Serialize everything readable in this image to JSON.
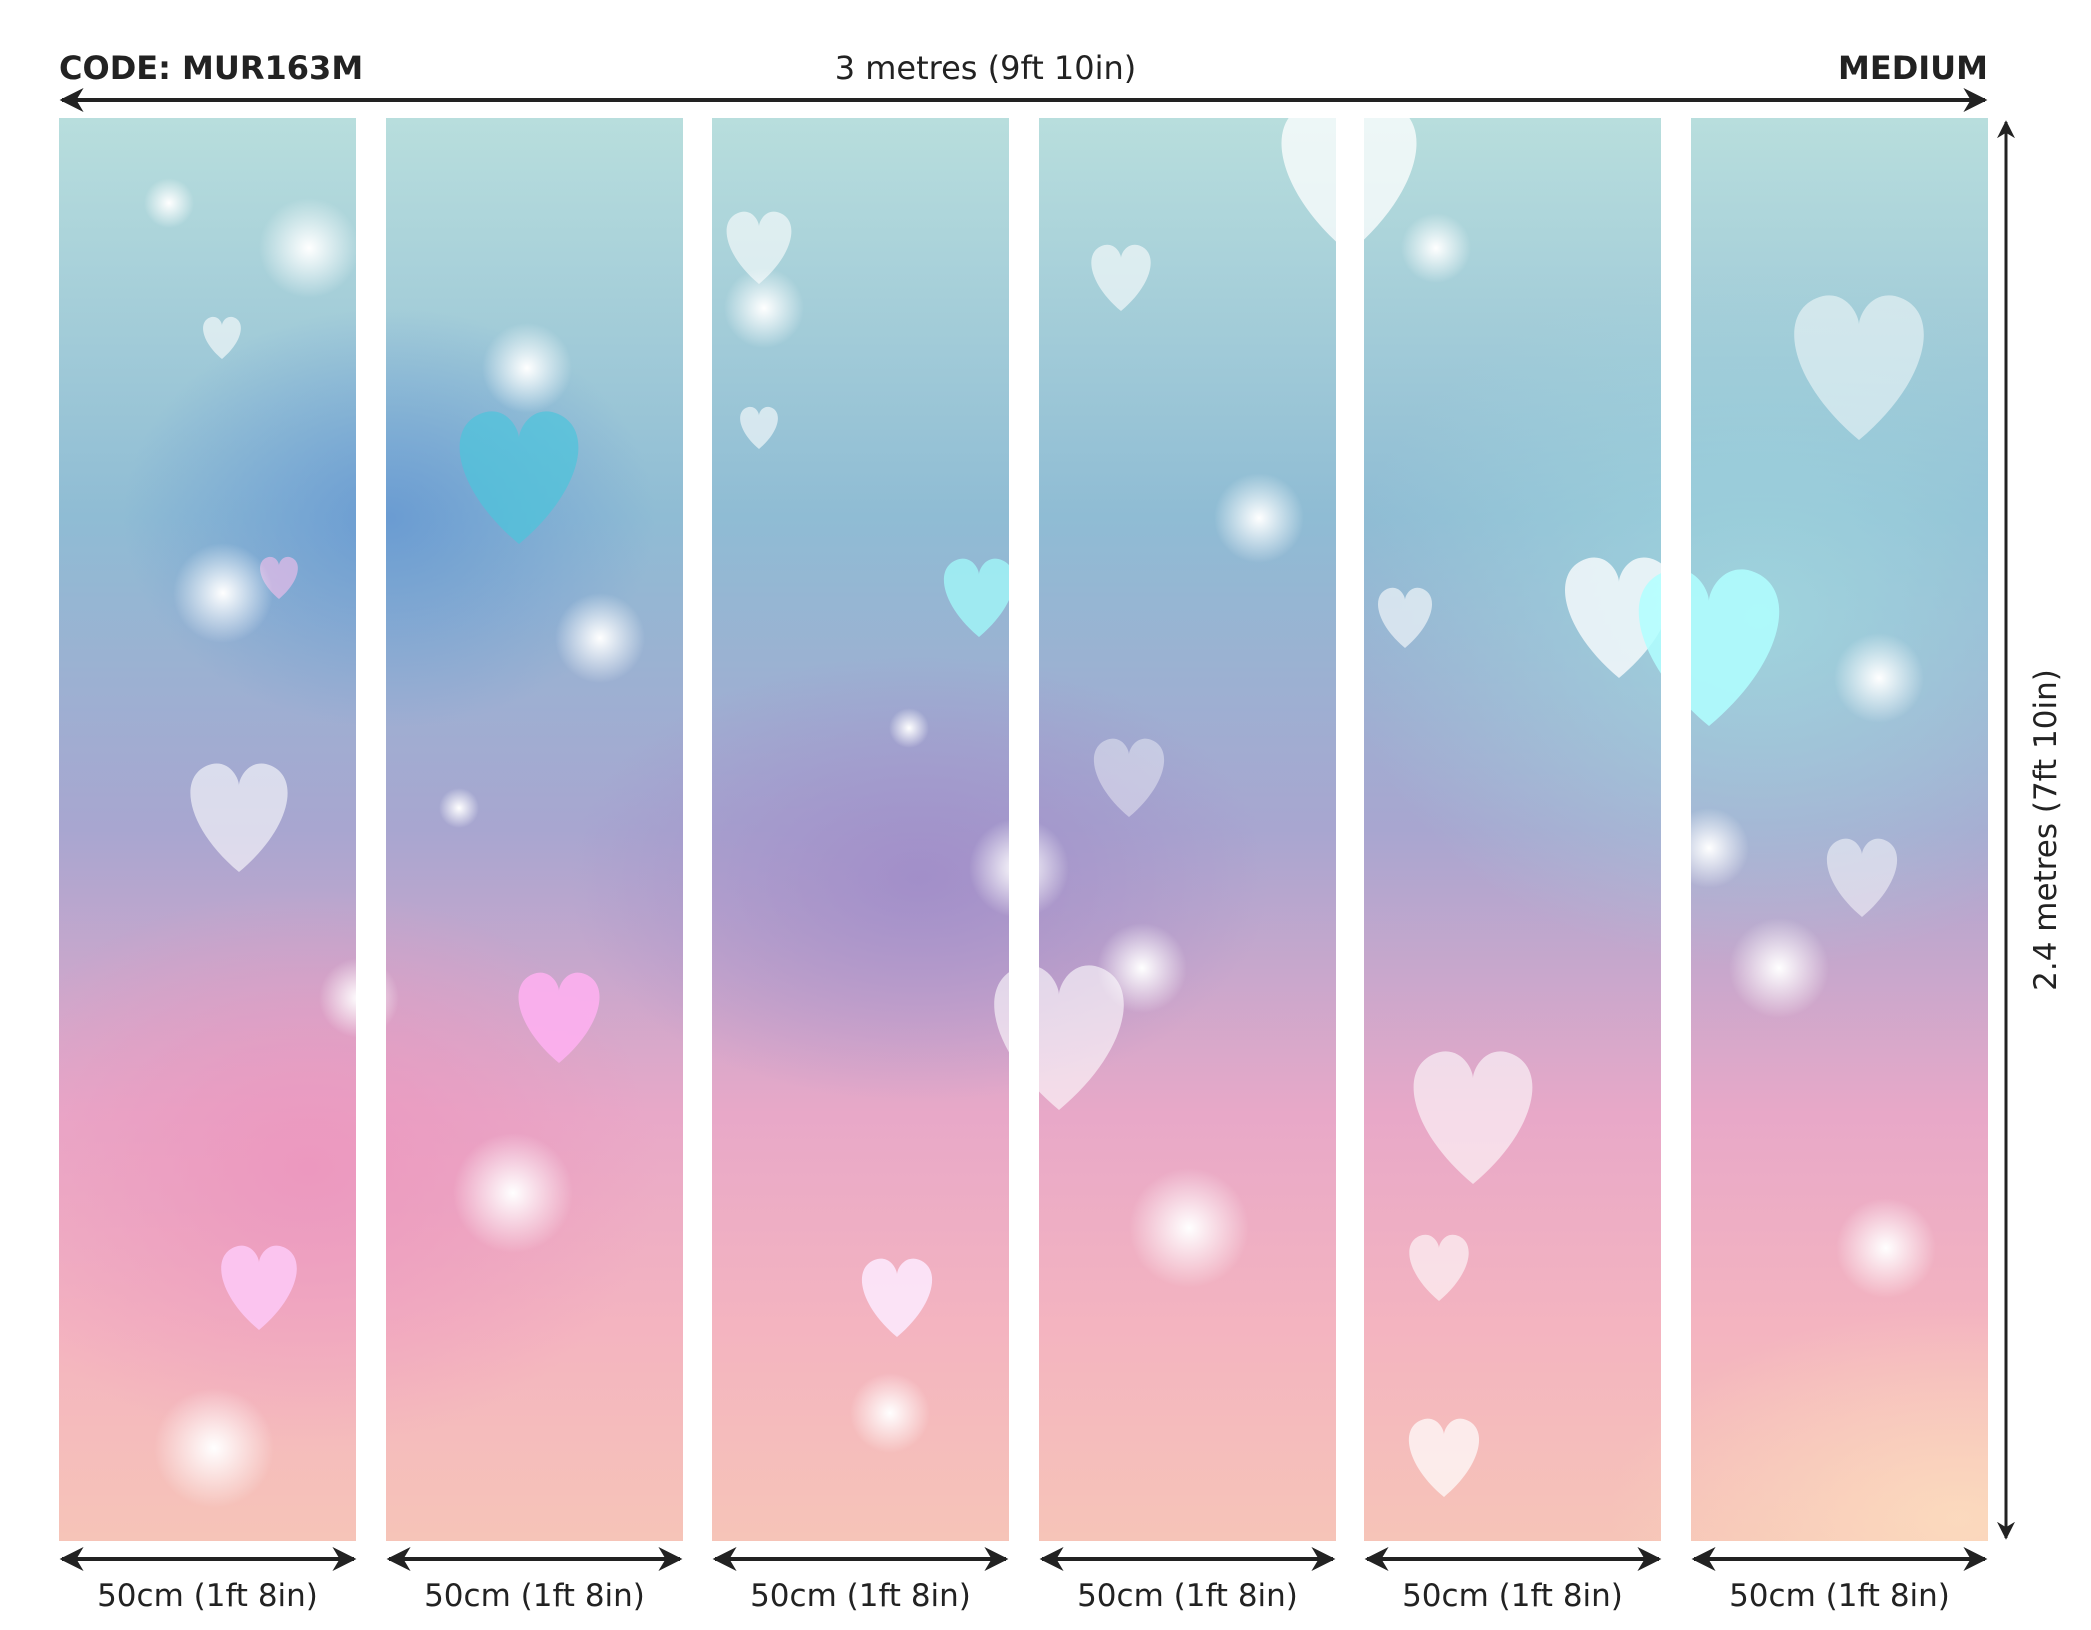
{
  "header": {
    "code": "CODE: MUR163M",
    "total_width": "3 metres (9ft 10in)",
    "size": "MEDIUM"
  },
  "height_label": "2.4 metres (7ft 10in)",
  "panels": [
    {
      "width_label": "50cm (1ft 8in)"
    },
    {
      "width_label": "50cm (1ft 8in)"
    },
    {
      "width_label": "50cm (1ft 8in)"
    },
    {
      "width_label": "50cm (1ft 8in)"
    },
    {
      "width_label": "50cm (1ft 8in)"
    },
    {
      "width_label": "50cm (1ft 8in)"
    }
  ],
  "colors": {
    "arrow": "#222222",
    "teal": "#b8dedd",
    "blue": "#6a9ac8",
    "purple": "#a8a6d0",
    "pink": "#e8a8c8",
    "peach": "#f6c4b8"
  }
}
